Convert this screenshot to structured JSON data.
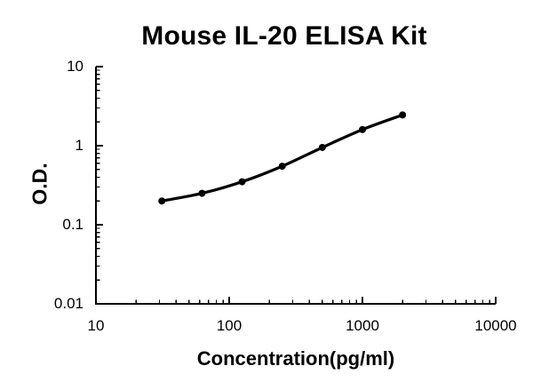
{
  "chart_data": {
    "type": "line",
    "title": "Mouse IL-20 ELISA Kit",
    "xlabel": "Concentration(pg/ml)",
    "ylabel": "O.D.",
    "xscale": "log",
    "yscale": "log",
    "xlim": [
      10,
      10000
    ],
    "ylim": [
      0.01,
      10
    ],
    "grid": false,
    "legend": false,
    "background_color": "#ffffff",
    "axis_color": "#000000",
    "x_ticks": [
      {
        "label": "10",
        "value": 10
      },
      {
        "label": "100",
        "value": 100
      },
      {
        "label": "1000",
        "value": 1000
      },
      {
        "label": "10000",
        "value": 10000
      }
    ],
    "y_ticks": [
      {
        "label": "10",
        "value": 10
      },
      {
        "label": "1",
        "value": 1
      },
      {
        "label": "0.1",
        "value": 0.1
      },
      {
        "label": "0.01",
        "value": 0.01
      }
    ],
    "series": [
      {
        "name": "standard-curve",
        "color": "#000000",
        "marker": "filled-circle",
        "x": [
          31.25,
          62.5,
          125,
          250,
          500,
          1000,
          2000
        ],
        "y": [
          0.2,
          0.25,
          0.35,
          0.55,
          0.95,
          1.6,
          2.45
        ]
      }
    ]
  }
}
